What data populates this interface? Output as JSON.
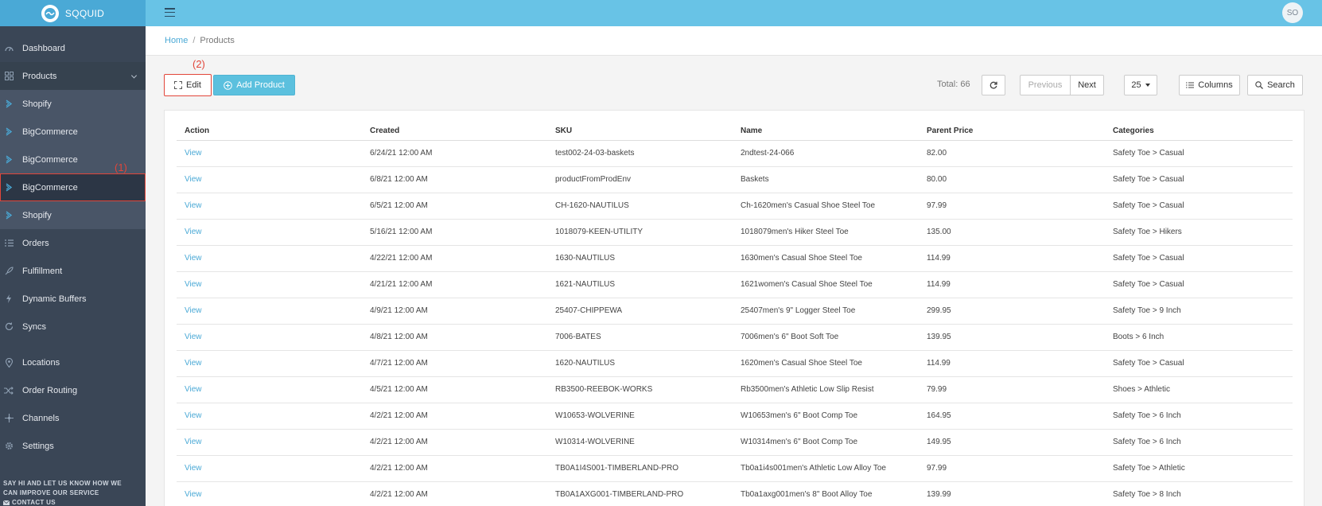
{
  "brand": {
    "name": "SQQUID"
  },
  "user": {
    "initials": "SO"
  },
  "sidebar": {
    "items": [
      {
        "label": "Dashboard",
        "icon": "dashboard-icon"
      },
      {
        "label": "Products",
        "icon": "grid-icon"
      },
      {
        "label": "Shopify",
        "icon": "store-icon"
      },
      {
        "label": "BigCommerce",
        "icon": "store-icon"
      },
      {
        "label": "BigCommerce",
        "icon": "store-icon"
      },
      {
        "label": "BigCommerce",
        "icon": "store-icon"
      },
      {
        "label": "Shopify",
        "icon": "store-icon"
      },
      {
        "label": "Orders",
        "icon": "list-icon"
      },
      {
        "label": "Fulfillment",
        "icon": "rocket-icon"
      },
      {
        "label": "Dynamic Buffers",
        "icon": "bolt-icon"
      },
      {
        "label": "Syncs",
        "icon": "sync-icon"
      },
      {
        "label": "Locations",
        "icon": "pin-icon"
      },
      {
        "label": "Order Routing",
        "icon": "shuffle-icon"
      },
      {
        "label": "Channels",
        "icon": "channels-icon"
      },
      {
        "label": "Settings",
        "icon": "gear-icon"
      }
    ],
    "footer_line1": "SAY HI AND LET US KNOW HOW WE",
    "footer_line2": "CAN IMPROVE OUR SERVICE",
    "contact_label": "CONTACT US"
  },
  "annotations": {
    "one": "(1)",
    "two": "(2)"
  },
  "breadcrumb": {
    "home": "Home",
    "separator": "/",
    "current": "Products"
  },
  "toolbar": {
    "edit_label": "Edit",
    "add_label": "Add Product",
    "total_label": "Total: 66",
    "previous_label": "Previous",
    "next_label": "Next",
    "page_size": "25",
    "columns_label": "Columns",
    "search_label": "Search"
  },
  "table": {
    "headers": [
      "Action",
      "Created",
      "SKU",
      "Name",
      "Parent Price",
      "Categories"
    ],
    "rows": [
      [
        "View",
        "6/24/21 12:00 AM",
        "test002-24-03-baskets",
        "2ndtest-24-066",
        "82.00",
        "Safety Toe > Casual"
      ],
      [
        "View",
        "6/8/21 12:00 AM",
        "productFromProdEnv",
        "Baskets",
        "80.00",
        "Safety Toe > Casual"
      ],
      [
        "View",
        "6/5/21 12:00 AM",
        "CH-1620-NAUTILUS",
        "Ch-1620men's Casual Shoe Steel Toe",
        "97.99",
        "Safety Toe > Casual"
      ],
      [
        "View",
        "5/16/21 12:00 AM",
        "1018079-KEEN-UTILITY",
        "1018079men's Hiker Steel Toe",
        "135.00",
        "Safety Toe > Hikers"
      ],
      [
        "View",
        "4/22/21 12:00 AM",
        "1630-NAUTILUS",
        "1630men's Casual Shoe Steel Toe",
        "114.99",
        "Safety Toe > Casual"
      ],
      [
        "View",
        "4/21/21 12:00 AM",
        "1621-NAUTILUS",
        "1621women's Casual Shoe Steel Toe",
        "114.99",
        "Safety Toe > Casual"
      ],
      [
        "View",
        "4/9/21 12:00 AM",
        "25407-CHIPPEWA",
        "25407men's 9\" Logger Steel Toe",
        "299.95",
        "Safety Toe > 9 Inch"
      ],
      [
        "View",
        "4/8/21 12:00 AM",
        "7006-BATES",
        "7006men's 6\" Boot Soft Toe",
        "139.95",
        "Boots > 6 Inch"
      ],
      [
        "View",
        "4/7/21 12:00 AM",
        "1620-NAUTILUS",
        "1620men's Casual Shoe Steel Toe",
        "114.99",
        "Safety Toe > Casual"
      ],
      [
        "View",
        "4/5/21 12:00 AM",
        "RB3500-REEBOK-WORKS",
        "Rb3500men's Athletic Low Slip Resist",
        "79.99",
        "Shoes > Athletic"
      ],
      [
        "View",
        "4/2/21 12:00 AM",
        "W10653-WOLVERINE",
        "W10653men's 6\" Boot Comp Toe",
        "164.95",
        "Safety Toe > 6 Inch"
      ],
      [
        "View",
        "4/2/21 12:00 AM",
        "W10314-WOLVERINE",
        "W10314men's 6\" Boot Comp Toe",
        "149.95",
        "Safety Toe > 6 Inch"
      ],
      [
        "View",
        "4/2/21 12:00 AM",
        "TB0A1I4S001-TIMBERLAND-PRO",
        "Tb0a1i4s001men's Athletic Low Alloy Toe",
        "97.99",
        "Safety Toe > Athletic"
      ],
      [
        "View",
        "4/2/21 12:00 AM",
        "TB0A1AXG001-TIMBERLAND-PRO",
        "Tb0a1axg001men's 8\" Boot Alloy Toe",
        "139.99",
        "Safety Toe > 8 Inch"
      ]
    ]
  },
  "colors": {
    "topbar": "#68c3e6",
    "sidebar": "#3a4656",
    "accent": "#4aa9d6",
    "annotation": "#e2463a"
  }
}
